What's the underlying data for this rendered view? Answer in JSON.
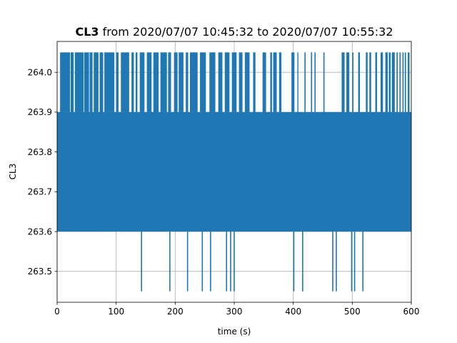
{
  "chart_data": {
    "type": "line",
    "title_bold": "CL3",
    "title_rest": " from 2020/07/07 10:45:32 to 2020/07/07 10:55:32",
    "xlabel": "time (s)",
    "ylabel": "CL3",
    "xlim": [
      0,
      600
    ],
    "ylim": [
      263.4225,
      264.0775
    ],
    "xticks": [
      0,
      100,
      200,
      300,
      400,
      500,
      600
    ],
    "xtick_labels": [
      "0",
      "100",
      "200",
      "300",
      "400",
      "500",
      "600"
    ],
    "yticks": [
      263.5,
      263.6,
      263.7,
      263.8,
      263.9,
      264.0
    ],
    "ytick_labels": [
      "263.5",
      "263.6",
      "263.7",
      "263.8",
      "263.9",
      "264.0"
    ],
    "grid": true,
    "series_color": "#1f77b4",
    "levels": [
      263.45,
      263.6,
      263.75,
      263.9,
      264.05
    ],
    "band": {
      "low": 263.6,
      "high": 263.9,
      "x_start": 0,
      "x_end": 600
    },
    "spikes_high": [
      {
        "x1": 5,
        "x2": 22
      },
      {
        "x1": 23,
        "x2": 28
      },
      {
        "x1": 30,
        "x2": 45
      },
      {
        "x1": 46,
        "x2": 54
      },
      {
        "x1": 55,
        "x2": 60
      },
      {
        "x1": 62,
        "x2": 70
      },
      {
        "x1": 72,
        "x2": 78
      },
      {
        "x1": 80,
        "x2": 97
      },
      {
        "x1": 100,
        "x2": 104
      },
      {
        "x1": 108,
        "x2": 122
      },
      {
        "x1": 126,
        "x2": 130
      },
      {
        "x1": 133,
        "x2": 136
      },
      {
        "x1": 140,
        "x2": 148
      },
      {
        "x1": 152,
        "x2": 160
      },
      {
        "x1": 163,
        "x2": 172
      },
      {
        "x1": 175,
        "x2": 186
      },
      {
        "x1": 188,
        "x2": 193
      },
      {
        "x1": 198,
        "x2": 204
      },
      {
        "x1": 206,
        "x2": 214
      },
      {
        "x1": 218,
        "x2": 222
      },
      {
        "x1": 225,
        "x2": 238
      },
      {
        "x1": 242,
        "x2": 252
      },
      {
        "x1": 258,
        "x2": 268
      },
      {
        "x1": 273,
        "x2": 280
      },
      {
        "x1": 284,
        "x2": 292
      },
      {
        "x1": 296,
        "x2": 304
      },
      {
        "x1": 308,
        "x2": 314
      },
      {
        "x1": 318,
        "x2": 326
      },
      {
        "x1": 332,
        "x2": 336
      },
      {
        "x1": 348,
        "x2": 354
      },
      {
        "x1": 361,
        "x2": 364
      },
      {
        "x1": 366,
        "x2": 372
      },
      {
        "x1": 376,
        "x2": 380
      },
      {
        "x1": 397,
        "x2": 402
      },
      {
        "x1": 407,
        "x2": 408
      },
      {
        "x1": 419,
        "x2": 421
      },
      {
        "x1": 430,
        "x2": 432
      },
      {
        "x1": 436,
        "x2": 438
      },
      {
        "x1": 451,
        "x2": 453
      },
      {
        "x1": 482,
        "x2": 487
      },
      {
        "x1": 490,
        "x2": 495
      },
      {
        "x1": 500,
        "x2": 502
      },
      {
        "x1": 510,
        "x2": 513
      },
      {
        "x1": 523,
        "x2": 526
      },
      {
        "x1": 529,
        "x2": 532
      },
      {
        "x1": 539,
        "x2": 542
      },
      {
        "x1": 548,
        "x2": 552
      },
      {
        "x1": 556,
        "x2": 560
      },
      {
        "x1": 562,
        "x2": 565
      },
      {
        "x1": 567,
        "x2": 572
      },
      {
        "x1": 575,
        "x2": 577
      },
      {
        "x1": 580,
        "x2": 582
      },
      {
        "x1": 585,
        "x2": 587
      },
      {
        "x1": 589,
        "x2": 591
      },
      {
        "x1": 594,
        "x2": 597
      }
    ],
    "spikes_low": [
      {
        "x1": 142,
        "x2": 143
      },
      {
        "x1": 190,
        "x2": 191
      },
      {
        "x1": 220,
        "x2": 221
      },
      {
        "x1": 245,
        "x2": 246
      },
      {
        "x1": 259,
        "x2": 260
      },
      {
        "x1": 286,
        "x2": 287
      },
      {
        "x1": 293,
        "x2": 294
      },
      {
        "x1": 299,
        "x2": 300
      },
      {
        "x1": 400,
        "x2": 401
      },
      {
        "x1": 415,
        "x2": 416
      },
      {
        "x1": 466,
        "x2": 467
      },
      {
        "x1": 472,
        "x2": 473
      },
      {
        "x1": 498,
        "x2": 499
      },
      {
        "x1": 503,
        "x2": 504
      },
      {
        "x1": 517,
        "x2": 518
      }
    ],
    "mid_extensions": [
      {
        "x1": 18,
        "x2": 20
      },
      {
        "x1": 26,
        "x2": 28
      },
      {
        "x1": 35,
        "x2": 40
      },
      {
        "x1": 54,
        "x2": 56
      },
      {
        "x1": 64,
        "x2": 66
      },
      {
        "x1": 77,
        "x2": 84
      },
      {
        "x1": 95,
        "x2": 97
      },
      {
        "x1": 113,
        "x2": 116
      },
      {
        "x1": 121,
        "x2": 122
      },
      {
        "x1": 136,
        "x2": 138
      },
      {
        "x1": 146,
        "x2": 147
      },
      {
        "x1": 152,
        "x2": 154
      },
      {
        "x1": 229,
        "x2": 231
      },
      {
        "x1": 250,
        "x2": 252
      }
    ]
  }
}
